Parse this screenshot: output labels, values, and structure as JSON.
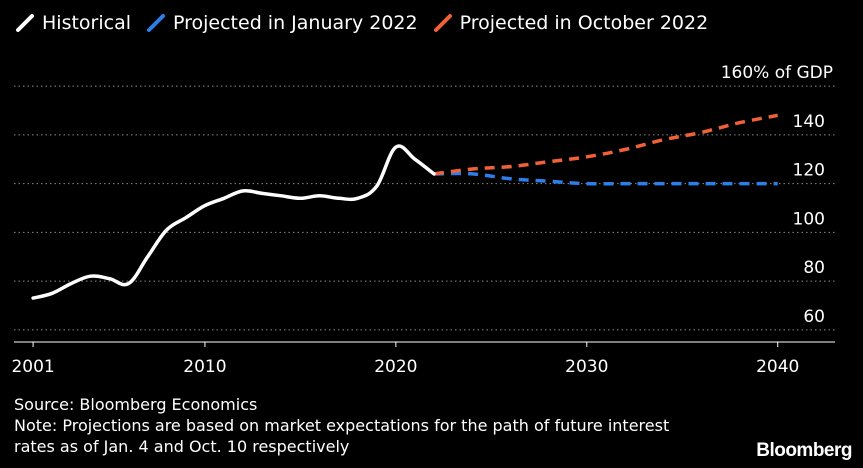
{
  "chart_data": {
    "type": "line",
    "unit_label": "160% of GDP",
    "x_ticks": [
      2001,
      2010,
      2020,
      2030,
      2040
    ],
    "y_ticks": [
      60,
      80,
      100,
      120,
      140
    ],
    "xlim": [
      2000,
      2043
    ],
    "ylim": [
      55,
      165
    ],
    "grid": true,
    "legend_position": "top-left",
    "series": [
      {
        "name": "Historical",
        "color": "#ffffff",
        "dash": "solid",
        "points": [
          [
            2001,
            73
          ],
          [
            2002,
            75
          ],
          [
            2003,
            79
          ],
          [
            2004,
            82
          ],
          [
            2005,
            81
          ],
          [
            2006,
            79
          ],
          [
            2007,
            90
          ],
          [
            2008,
            101
          ],
          [
            2009,
            106
          ],
          [
            2010,
            111
          ],
          [
            2011,
            114
          ],
          [
            2012,
            117
          ],
          [
            2013,
            116
          ],
          [
            2014,
            115
          ],
          [
            2015,
            114
          ],
          [
            2016,
            115
          ],
          [
            2017,
            114
          ],
          [
            2018,
            114
          ],
          [
            2019,
            119
          ],
          [
            2020,
            135
          ],
          [
            2021,
            130
          ],
          [
            2022,
            124
          ]
        ]
      },
      {
        "name": "Projected in January 2022",
        "color": "#2f7de8",
        "dash": "dashed",
        "points": [
          [
            2022,
            124
          ],
          [
            2024,
            124
          ],
          [
            2026,
            122
          ],
          [
            2028,
            121
          ],
          [
            2030,
            120
          ],
          [
            2032,
            120
          ],
          [
            2034,
            120
          ],
          [
            2036,
            120
          ],
          [
            2038,
            120
          ],
          [
            2040,
            120
          ]
        ]
      },
      {
        "name": "Projected in October 2022",
        "color": "#f0613a",
        "dash": "dashed",
        "points": [
          [
            2022,
            124
          ],
          [
            2024,
            126
          ],
          [
            2026,
            127
          ],
          [
            2028,
            129
          ],
          [
            2030,
            131
          ],
          [
            2032,
            134
          ],
          [
            2034,
            138
          ],
          [
            2036,
            141
          ],
          [
            2038,
            145
          ],
          [
            2040,
            148
          ]
        ]
      }
    ]
  },
  "footer": {
    "source": "Source: Bloomberg Economics",
    "note_line1": "Note: Projections are based on market expectations for the path of future interest",
    "note_line2": "rates as of Jan. 4 and Oct. 10 respectively"
  },
  "brand": "Bloomberg"
}
